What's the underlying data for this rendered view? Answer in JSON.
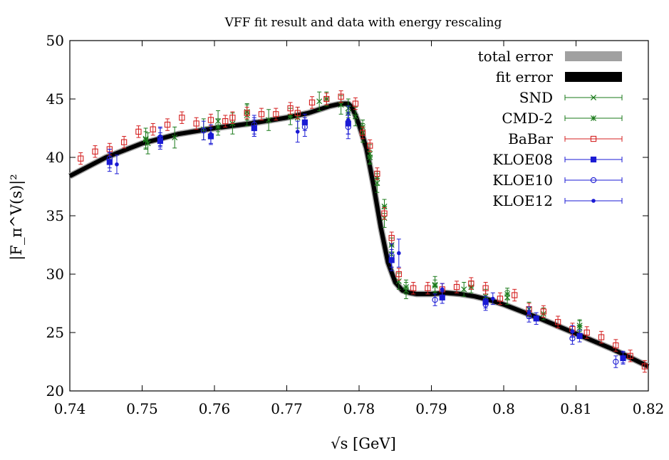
{
  "chart_data": {
    "type": "scatter",
    "title": "VFF fit result and data with energy rescaling",
    "xlabel": "√s [GeV]",
    "ylabel": "|F_π^V(s)|²",
    "xlim": [
      0.74,
      0.82
    ],
    "ylim": [
      20,
      50
    ],
    "xticks": [
      0.74,
      0.75,
      0.76,
      0.77,
      0.78,
      0.79,
      0.8,
      0.81,
      0.82
    ],
    "xtick_labels": [
      "0.74",
      "0.75",
      "0.76",
      "0.77",
      "0.78",
      "0.79",
      "0.8",
      "0.81",
      "0.82"
    ],
    "yticks": [
      20,
      25,
      30,
      35,
      40,
      45,
      50
    ],
    "ytick_labels": [
      "20",
      "25",
      "30",
      "35",
      "40",
      "45",
      "50"
    ],
    "legend_position": "top-right",
    "series": [
      {
        "name": "total error",
        "kind": "band",
        "color": "#a0a0a0"
      },
      {
        "name": "fit error",
        "kind": "line",
        "color": "#000000",
        "x": [
          0.74,
          0.745,
          0.75,
          0.755,
          0.76,
          0.765,
          0.77,
          0.773,
          0.776,
          0.7775,
          0.7785,
          0.779,
          0.7795,
          0.78,
          0.781,
          0.782,
          0.783,
          0.784,
          0.785,
          0.786,
          0.787,
          0.788,
          0.79,
          0.792,
          0.794,
          0.796,
          0.798,
          0.8,
          0.805,
          0.81,
          0.815,
          0.82
        ],
        "y": [
          38.4,
          40.0,
          41.2,
          42.0,
          42.5,
          42.9,
          43.4,
          43.8,
          44.4,
          44.6,
          44.6,
          44.3,
          43.6,
          42.8,
          40.8,
          37.6,
          34.0,
          31.0,
          29.3,
          28.6,
          28.4,
          28.3,
          28.3,
          28.4,
          28.3,
          28.1,
          27.8,
          27.4,
          26.2,
          24.9,
          23.6,
          22.1
        ]
      },
      {
        "name": "SND",
        "marker": "cross",
        "color": "#1a7a1a",
        "points": [
          [
            0.7505,
            41.6,
            0.9
          ],
          [
            0.7508,
            41.2,
            0.9
          ],
          [
            0.7545,
            41.7,
            0.9
          ],
          [
            0.7585,
            42.4,
            0.9
          ],
          [
            0.7605,
            43.1,
            0.9
          ],
          [
            0.7625,
            42.9,
            0.9
          ],
          [
            0.7645,
            43.6,
            0.9
          ],
          [
            0.7675,
            43.2,
            0.9
          ],
          [
            0.7715,
            43.4,
            0.9
          ],
          [
            0.7745,
            44.8,
            0.8
          ],
          [
            0.7775,
            44.5,
            0.8
          ],
          [
            0.7785,
            44.2,
            0.8
          ],
          [
            0.7795,
            43.5,
            0.8
          ],
          [
            0.7805,
            42.1,
            0.8
          ],
          [
            0.7815,
            40.3,
            0.8
          ],
          [
            0.7825,
            37.8,
            0.8
          ],
          [
            0.7835,
            34.8,
            0.8
          ],
          [
            0.7845,
            31.7,
            0.7
          ],
          [
            0.7855,
            29.4,
            0.7
          ],
          [
            0.7865,
            28.6,
            0.7
          ],
          [
            0.7905,
            29.1,
            0.7
          ],
          [
            0.7945,
            28.7,
            0.6
          ],
          [
            0.7975,
            28.1,
            0.6
          ],
          [
            0.8005,
            28.0,
            0.6
          ],
          [
            0.8035,
            27.0,
            0.6
          ],
          [
            0.8105,
            25.4,
            0.6
          ]
        ]
      },
      {
        "name": "CMD-2",
        "marker": "star",
        "color": "#1a7a1a",
        "points": [
          [
            0.7505,
            41.5,
            0.7
          ],
          [
            0.7605,
            42.6,
            0.7
          ],
          [
            0.7645,
            43.9,
            0.7
          ],
          [
            0.7705,
            43.5,
            0.7
          ],
          [
            0.7755,
            45.0,
            0.6
          ],
          [
            0.7785,
            43.8,
            0.6
          ],
          [
            0.7805,
            42.6,
            0.6
          ],
          [
            0.7815,
            40.0,
            0.6
          ],
          [
            0.7825,
            38.2,
            0.6
          ],
          [
            0.7835,
            35.8,
            0.6
          ],
          [
            0.7845,
            32.5,
            0.6
          ],
          [
            0.7865,
            28.9,
            0.6
          ],
          [
            0.7905,
            29.0,
            0.5
          ],
          [
            0.7955,
            28.9,
            0.5
          ],
          [
            0.8005,
            28.3,
            0.5
          ],
          [
            0.8055,
            26.6,
            0.5
          ],
          [
            0.8105,
            25.6,
            0.5
          ]
        ]
      },
      {
        "name": "BaBar",
        "marker": "open-square",
        "color": "#d42020",
        "points": [
          [
            0.7415,
            39.9,
            0.5
          ],
          [
            0.7435,
            40.5,
            0.5
          ],
          [
            0.7455,
            40.7,
            0.5
          ],
          [
            0.7475,
            41.3,
            0.5
          ],
          [
            0.7495,
            42.2,
            0.5
          ],
          [
            0.7515,
            42.4,
            0.5
          ],
          [
            0.7535,
            42.8,
            0.5
          ],
          [
            0.7555,
            43.4,
            0.5
          ],
          [
            0.7575,
            42.9,
            0.5
          ],
          [
            0.7595,
            43.2,
            0.5
          ],
          [
            0.7615,
            43.1,
            0.5
          ],
          [
            0.7625,
            43.4,
            0.5
          ],
          [
            0.7645,
            43.8,
            0.5
          ],
          [
            0.7665,
            43.7,
            0.5
          ],
          [
            0.7685,
            43.7,
            0.5
          ],
          [
            0.7705,
            44.2,
            0.5
          ],
          [
            0.7715,
            43.8,
            0.5
          ],
          [
            0.7735,
            44.7,
            0.5
          ],
          [
            0.7755,
            45.0,
            0.5
          ],
          [
            0.7775,
            45.2,
            0.5
          ],
          [
            0.7795,
            44.6,
            0.5
          ],
          [
            0.7805,
            42.1,
            0.5
          ],
          [
            0.7815,
            41.0,
            0.5
          ],
          [
            0.7825,
            38.6,
            0.5
          ],
          [
            0.7835,
            35.2,
            0.5
          ],
          [
            0.7845,
            33.1,
            0.5
          ],
          [
            0.7855,
            30.0,
            0.5
          ],
          [
            0.7875,
            28.8,
            0.5
          ],
          [
            0.7895,
            28.8,
            0.5
          ],
          [
            0.7915,
            28.7,
            0.5
          ],
          [
            0.7935,
            28.9,
            0.5
          ],
          [
            0.7955,
            29.2,
            0.5
          ],
          [
            0.7975,
            28.8,
            0.5
          ],
          [
            0.7995,
            27.9,
            0.5
          ],
          [
            0.8015,
            28.2,
            0.5
          ],
          [
            0.8035,
            27.0,
            0.5
          ],
          [
            0.8055,
            26.8,
            0.5
          ],
          [
            0.8075,
            25.9,
            0.5
          ],
          [
            0.8095,
            25.3,
            0.5
          ],
          [
            0.8115,
            25.0,
            0.5
          ],
          [
            0.8135,
            24.6,
            0.5
          ],
          [
            0.8155,
            23.9,
            0.5
          ],
          [
            0.8175,
            23.0,
            0.5
          ],
          [
            0.8195,
            22.1,
            0.5
          ]
        ]
      },
      {
        "name": "KLOE08",
        "marker": "filled-square",
        "color": "#1a1ad4",
        "points": [
          [
            0.7455,
            39.6,
            0.8
          ],
          [
            0.7525,
            41.4,
            0.7
          ],
          [
            0.7595,
            41.8,
            0.7
          ],
          [
            0.7655,
            42.5,
            0.7
          ],
          [
            0.7725,
            43.0,
            0.7
          ],
          [
            0.7785,
            42.9,
            0.9
          ],
          [
            0.7845,
            31.2,
            0.9
          ],
          [
            0.7915,
            28.0,
            0.5
          ],
          [
            0.7975,
            27.6,
            0.5
          ],
          [
            0.8045,
            26.2,
            0.5
          ],
          [
            0.8105,
            24.7,
            0.5
          ],
          [
            0.8165,
            22.8,
            0.5
          ]
        ]
      },
      {
        "name": "KLOE10",
        "marker": "open-circle",
        "color": "#1a1ad4",
        "points": [
          [
            0.7455,
            39.9,
            0.8
          ],
          [
            0.7525,
            41.7,
            0.8
          ],
          [
            0.7585,
            42.3,
            0.8
          ],
          [
            0.7655,
            42.8,
            0.8
          ],
          [
            0.7725,
            42.6,
            0.8
          ],
          [
            0.7785,
            42.6,
            1.0
          ],
          [
            0.7845,
            31.6,
            1.0
          ],
          [
            0.7905,
            27.8,
            0.5
          ],
          [
            0.7975,
            27.4,
            0.5
          ],
          [
            0.8035,
            26.4,
            0.5
          ],
          [
            0.8095,
            24.5,
            0.5
          ],
          [
            0.8155,
            22.5,
            0.5
          ]
        ]
      },
      {
        "name": "KLOE12",
        "marker": "filled-circle",
        "color": "#1a1ad4",
        "points": [
          [
            0.7465,
            39.4,
            0.8
          ],
          [
            0.7525,
            41.8,
            0.8
          ],
          [
            0.7595,
            42.0,
            0.8
          ],
          [
            0.7655,
            42.6,
            0.8
          ],
          [
            0.7715,
            42.2,
            0.9
          ],
          [
            0.7785,
            43.2,
            1.2
          ],
          [
            0.7855,
            31.8,
            1.2
          ],
          [
            0.7915,
            28.7,
            0.5
          ],
          [
            0.7985,
            27.9,
            0.5
          ],
          [
            0.8035,
            26.7,
            0.5
          ],
          [
            0.8095,
            25.1,
            0.5
          ],
          [
            0.8165,
            22.9,
            0.5
          ]
        ]
      }
    ]
  }
}
